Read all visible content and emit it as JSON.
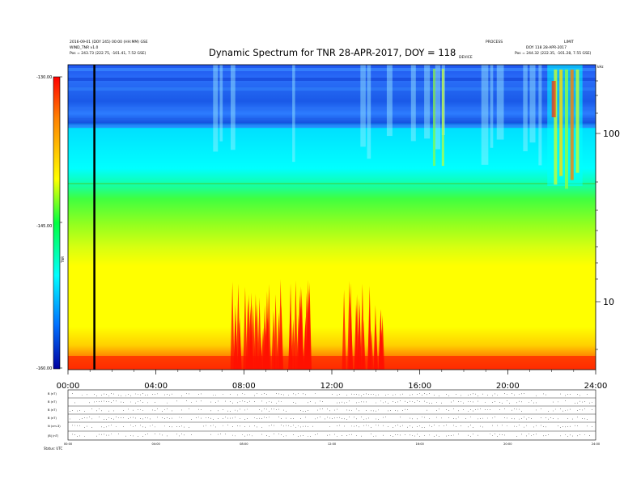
{
  "header": {
    "title": "Dynamic Spectrum for TNR 28-APR-2017, DOY = 118",
    "left_line1": "2016-09-01 (DOY 245) 00:00 (HH:MM) GSE",
    "left_line2": "WIND_TNR v1.0",
    "left_start": "Pos = 243.73 (222.75, -101.41, 7.52 GSE)",
    "right_line1": "PROCESS",
    "right_line2": "LIMIT",
    "right_line3": "DOY 118  28-APR-2017",
    "right_end": "Pos = 244.32 (222.35, -101.28, 7.55 GSE)",
    "center_tag": "DEVICE"
  },
  "chart_data": {
    "type": "heatmap",
    "title": "Dynamic Spectrum for TNR 28-APR-2017, DOY = 118",
    "xlabel": "",
    "ylabel": "",
    "x_ticks": [
      "00:00",
      "04:00",
      "08:00",
      "12:00",
      "16:00",
      "20:00",
      "24:00"
    ],
    "x_range_hours": [
      0,
      24
    ],
    "y_scale": "log",
    "y_right_ticks": [
      "100",
      "10"
    ],
    "y_right_unit": "kHz",
    "colorbar": {
      "ticks": [
        "-130.00",
        "-145.00",
        "-160.00"
      ],
      "label": "TNR",
      "range": [
        -160,
        -130
      ],
      "colors": [
        "#0000a0",
        "#0070ff",
        "#00ffff",
        "#00ff40",
        "#ffff00",
        "#ff8000",
        "#ff0000"
      ]
    },
    "marker_hour": 1.2,
    "bursts_hours": [
      7.9,
      8.6,
      9.2,
      10.6,
      11.0,
      13.0,
      13.8
    ]
  },
  "panels": {
    "labels": [
      "B (nT)",
      "B (nT)",
      "B (nT)",
      "B (nT)",
      "N (cm-3)",
      "|B| (nT)"
    ],
    "x_ticks": [
      "00:00",
      "04:00",
      "08:00",
      "12:00",
      "16:00",
      "20:00",
      "24:00"
    ],
    "footer": "Status: UTC"
  }
}
